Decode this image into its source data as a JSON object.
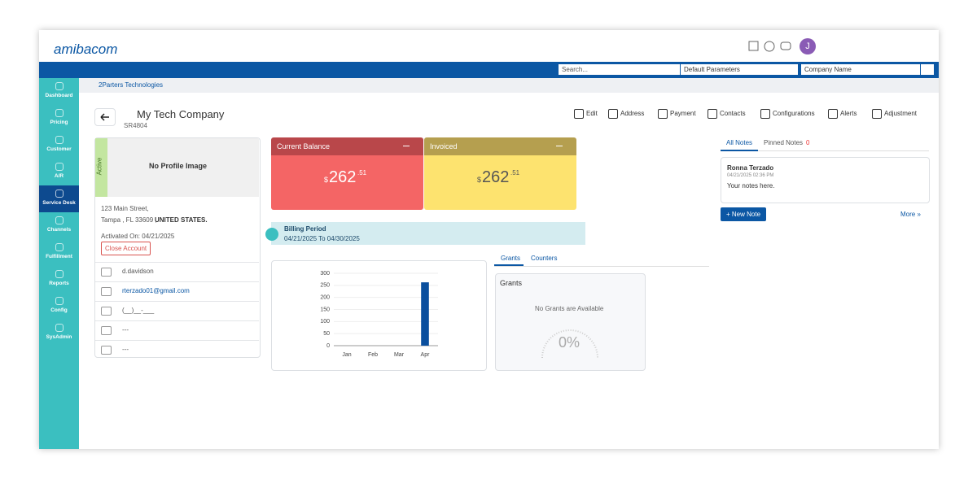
{
  "header": {
    "logo": "amibacom",
    "avatar": "J"
  },
  "search": {
    "placeholder": "Search...",
    "parameters": "Default Parameters",
    "company_field": "Company Name"
  },
  "sidebar": [
    "Dashboard",
    "Pricing",
    "Customer",
    "A/R",
    "Service Desk",
    "Channels",
    "Fulfillment",
    "Reports",
    "Config",
    "SysAdmin"
  ],
  "breadcrumb": "2Parters Technologies",
  "company": {
    "name": "My Tech Company",
    "id": "SR4804"
  },
  "actions": [
    "Edit",
    "Address",
    "Payment",
    "Contacts",
    "Configurations",
    "Alerts",
    "Adjustment"
  ],
  "profile": {
    "status": "Active",
    "image": "No Profile Image",
    "street": "123 Main Street,",
    "city": "Tampa , FL 33609 ,",
    "country": "UNITED STATES.",
    "activated": "Activated On: 04/21/2025",
    "close_button": "Close Account",
    "rows": [
      "d.davidson",
      "rterzado01@gmail.com",
      "(__)__-___",
      "---",
      "---"
    ]
  },
  "cards": [
    {
      "title": "Current Balance",
      "currency": "$",
      "amount": "262",
      "cents": ".51"
    },
    {
      "title": "Invoiced",
      "currency": "$",
      "amount": "262",
      "cents": ".51"
    }
  ],
  "billing": {
    "title": "Billing Period",
    "range": "04/21/2025 To 04/30/2025"
  },
  "chart_data": {
    "type": "bar",
    "categories": [
      "Jan",
      "Feb",
      "Mar",
      "Apr"
    ],
    "values": [
      0,
      0,
      0,
      262.51
    ],
    "color": "#0b4f9e",
    "ylim": [
      0,
      300
    ],
    "yticks": [
      0,
      50,
      100,
      150,
      200,
      250,
      300
    ],
    "grid": true
  },
  "grants": {
    "tabs": [
      "Grants",
      "Counters"
    ],
    "title": "Grants",
    "empty": "No Grants are Available",
    "gauge": "0%"
  },
  "notes": {
    "tabs": [
      "All Notes",
      "Pinned Notes"
    ],
    "pinned_count": "0",
    "author": "Ronna Terzado",
    "time": "04/21/2025 02:36 PM",
    "text": "Your notes here.",
    "new_button": "+ New Note",
    "more": "More »"
  }
}
